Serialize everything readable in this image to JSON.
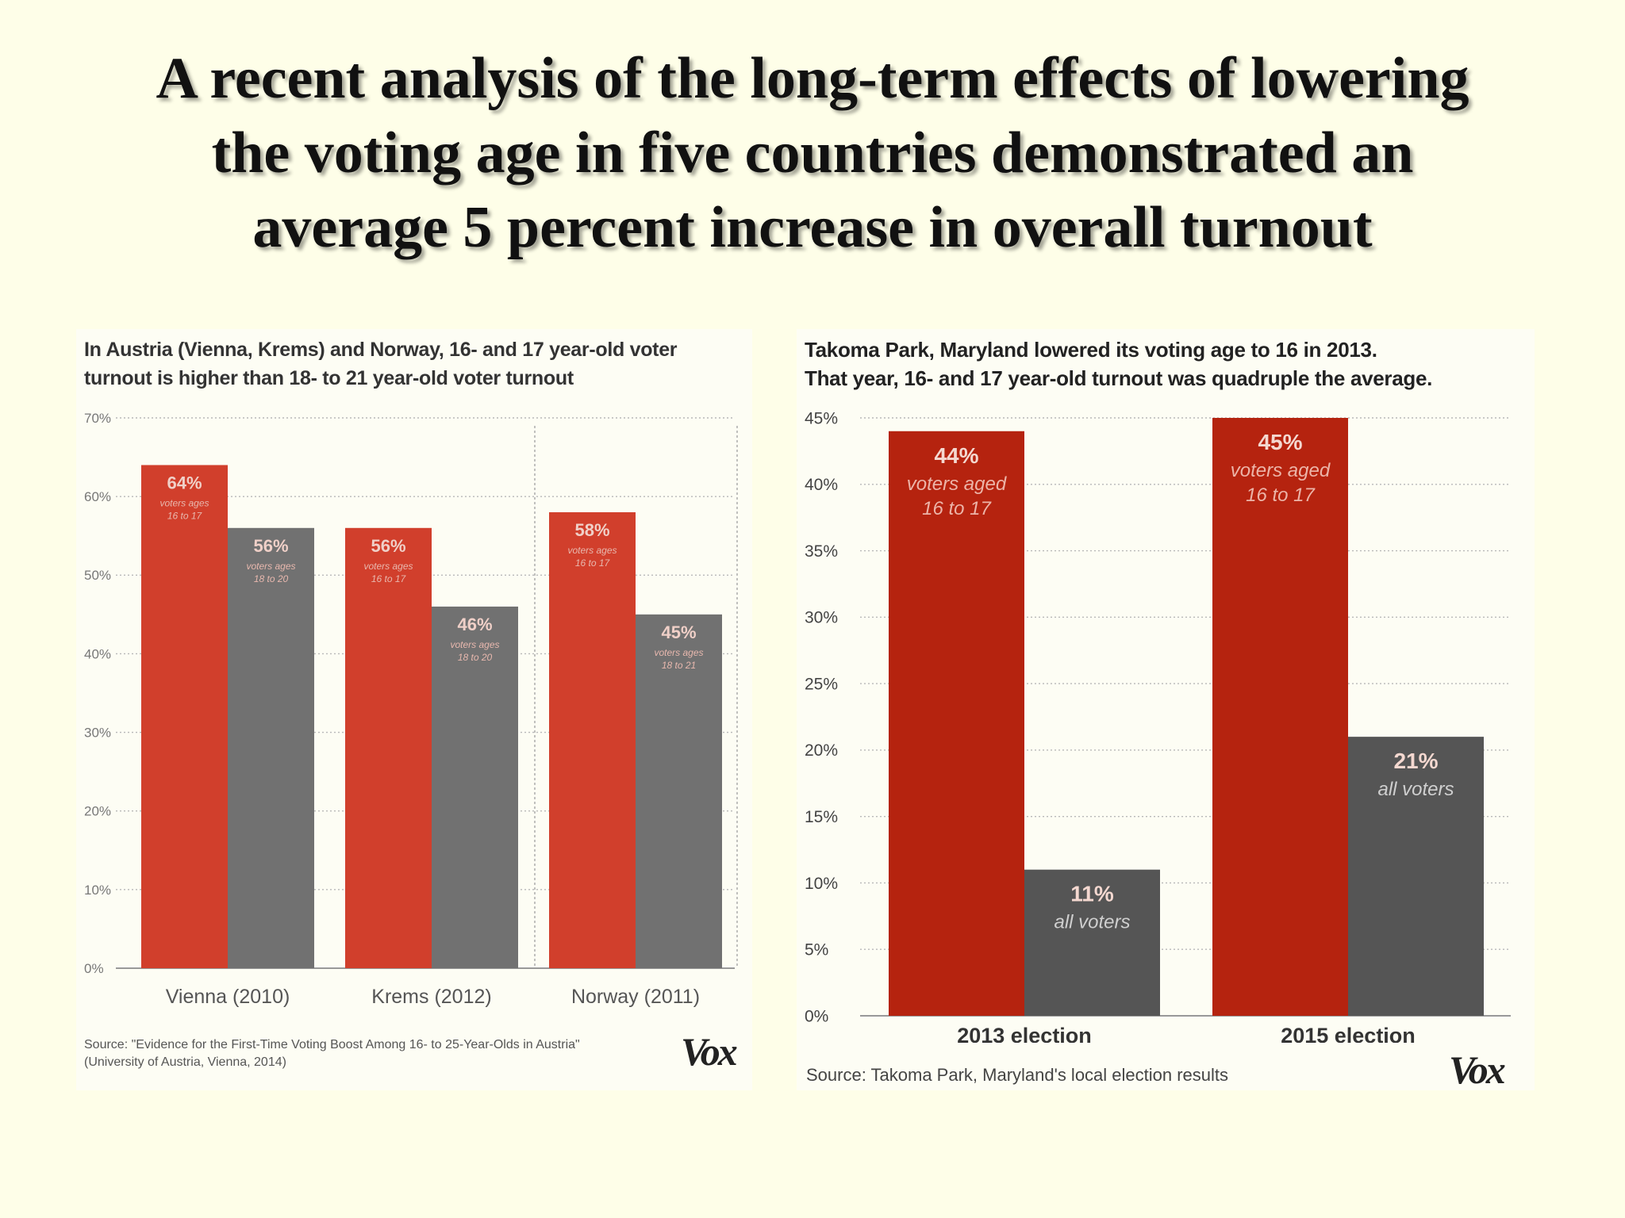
{
  "slide": {
    "title_lines": [
      "A recent analysis of the long-term effects of lowering",
      "the voting age in five countries demonstrated an",
      "average 5 percent increase in overall turnout"
    ]
  },
  "colors": {
    "red": "#d13f2c",
    "gray": "#717171",
    "red_dark": "#b5230f",
    "gray_dark": "#555555"
  },
  "chart_data": [
    {
      "type": "bar",
      "title_lines": [
        "In Austria (Vienna, Krems) and Norway, 16- and 17 year-old voter",
        "turnout is higher than 18- to 21 year-old voter turnout"
      ],
      "ylim": [
        0,
        70
      ],
      "yticks": [
        "0%",
        "10%",
        "20%",
        "30%",
        "40%",
        "50%",
        "60%",
        "70%"
      ],
      "categories": [
        "Vienna (2010)",
        "Krems (2012)",
        "Norway (2011)"
      ],
      "bars": [
        [
          {
            "value": 64,
            "label": "64%",
            "sub": [
              "voters ages",
              "16 to 17"
            ],
            "series": "red"
          },
          {
            "value": 56,
            "label": "56%",
            "sub": [
              "voters ages",
              "18 to 20"
            ],
            "series": "gray"
          }
        ],
        [
          {
            "value": 56,
            "label": "56%",
            "sub": [
              "voters ages",
              "16 to 17"
            ],
            "series": "red"
          },
          {
            "value": 46,
            "label": "46%",
            "sub": [
              "voters ages",
              "18 to 20"
            ],
            "series": "gray"
          }
        ],
        [
          {
            "value": 58,
            "label": "58%",
            "sub": [
              "voters ages",
              "16 to 17"
            ],
            "series": "red"
          },
          {
            "value": 45,
            "label": "45%",
            "sub": [
              "voters ages",
              "18 to 21"
            ],
            "series": "gray"
          }
        ]
      ],
      "source_lines": [
        "Source: \"Evidence for the First-Time Voting Boost Among 16- to 25-Year-Olds in Austria\"",
        "(University of Austria, Vienna, 2014)"
      ],
      "logo": "Vox"
    },
    {
      "type": "bar",
      "title_lines": [
        "Takoma Park, Maryland lowered its voting age to 16 in 2013.",
        "That year, 16- and 17 year-old turnout was quadruple the average."
      ],
      "ylim": [
        0,
        45
      ],
      "yticks": [
        "0%",
        "5%",
        "10%",
        "15%",
        "20%",
        "25%",
        "30%",
        "35%",
        "40%",
        "45%"
      ],
      "categories": [
        "2013 election",
        "2015 election"
      ],
      "bars": [
        [
          {
            "value": 44,
            "label": "44%",
            "sub": [
              "voters aged",
              "16 to 17"
            ],
            "series": "red"
          },
          {
            "value": 11,
            "label": "11%",
            "sub": [
              "all voters"
            ],
            "series": "gray"
          }
        ],
        [
          {
            "value": 45,
            "label": "45%",
            "sub": [
              "voters aged",
              "16 to 17"
            ],
            "series": "red"
          },
          {
            "value": 21,
            "label": "21%",
            "sub": [
              "all voters"
            ],
            "series": "gray"
          }
        ]
      ],
      "source_lines": [
        "Source: Takoma Park, Maryland's local election results"
      ],
      "logo": "Vox"
    }
  ]
}
